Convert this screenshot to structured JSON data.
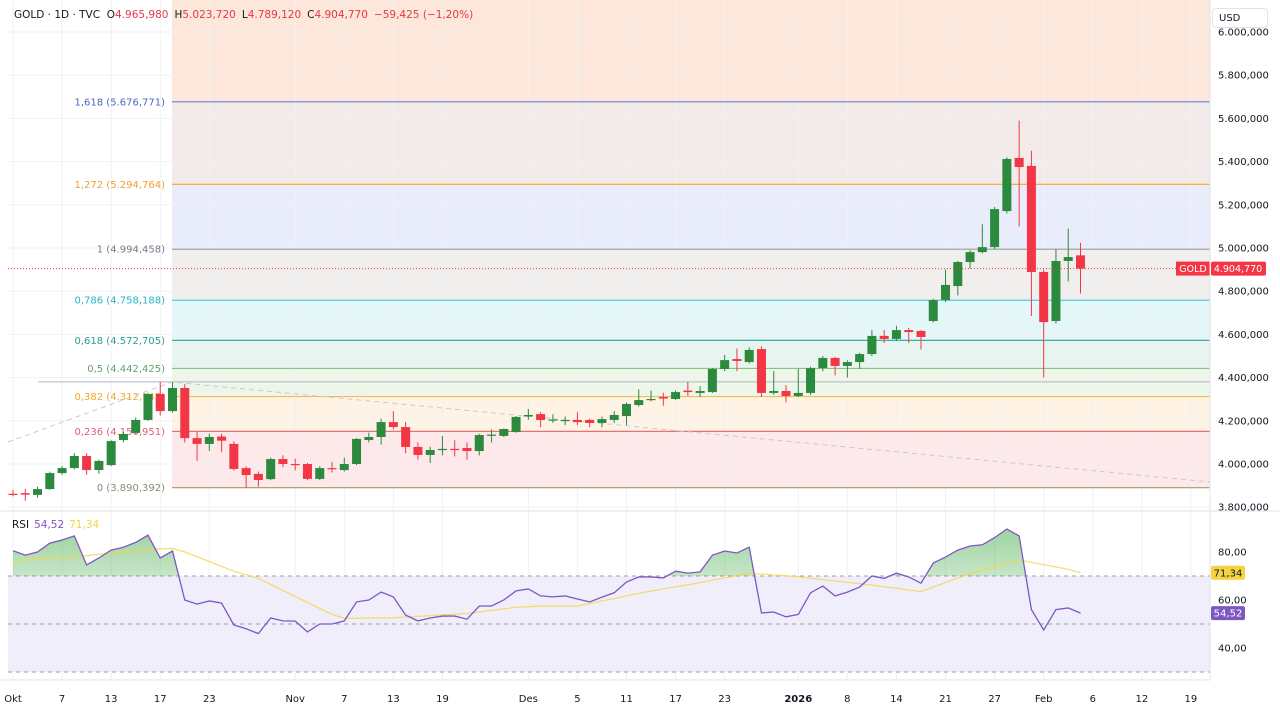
{
  "header": {
    "symbol": "GOLD · 1D · TVC",
    "ohlc": [
      {
        "key": "O",
        "value": "4.965,980"
      },
      {
        "key": "H",
        "value": "5.023,720"
      },
      {
        "key": "L",
        "value": "4.789,120"
      },
      {
        "key": "C",
        "value": "4.904,770"
      }
    ],
    "change": "−59,425 (−1,20%)"
  },
  "currency": "USD",
  "last_price": {
    "symbol": "GOLD",
    "label": "4.904,770",
    "value": 4904.77
  },
  "colors": {
    "up": "#2b8a3e",
    "down": "#f23645",
    "rsi": "#7e57c2",
    "rsi_ma": "#f5d442",
    "price_line": "#f23645"
  },
  "rsi_header": {
    "label": "RSI",
    "value": "54,52",
    "ma_value": "71,34"
  },
  "chart_data": [
    {
      "type": "candlestick",
      "interval": "1D",
      "ylim": [
        3800,
        6000
      ],
      "grid": true,
      "y_ticks": [
        {
          "value": 6000,
          "label": "6.000,000"
        },
        {
          "value": 5800,
          "label": "5.800,000"
        },
        {
          "value": 5600,
          "label": "5.600,000"
        },
        {
          "value": 5400,
          "label": "5.400,000"
        },
        {
          "value": 5200,
          "label": "5.200,000"
        },
        {
          "value": 5000,
          "label": "5.000,000"
        },
        {
          "value": 4800,
          "label": "4.800,000"
        },
        {
          "value": 4600,
          "label": "4.600,000"
        },
        {
          "value": 4400,
          "label": "4.400,000"
        },
        {
          "value": 4200,
          "label": "4.200,000"
        },
        {
          "value": 4000,
          "label": "4.000,000"
        },
        {
          "value": 3800,
          "label": "3.800,000"
        }
      ],
      "x_ticks": [
        {
          "bar": 0,
          "label": "Okt"
        },
        {
          "bar": 4,
          "label": "7"
        },
        {
          "bar": 8,
          "label": "13"
        },
        {
          "bar": 12,
          "label": "17"
        },
        {
          "bar": 16,
          "label": "23"
        },
        {
          "bar": 23,
          "label": "Nov"
        },
        {
          "bar": 27,
          "label": "7"
        },
        {
          "bar": 31,
          "label": "13"
        },
        {
          "bar": 35,
          "label": "19"
        },
        {
          "bar": 42,
          "label": "Des"
        },
        {
          "bar": 46,
          "label": "5"
        },
        {
          "bar": 50,
          "label": "11"
        },
        {
          "bar": 54,
          "label": "17"
        },
        {
          "bar": 58,
          "label": "23"
        },
        {
          "bar": 64,
          "label": "2026",
          "bold": true
        },
        {
          "bar": 68,
          "label": "8"
        },
        {
          "bar": 72,
          "label": "14"
        },
        {
          "bar": 76,
          "label": "21"
        },
        {
          "bar": 80,
          "label": "27"
        },
        {
          "bar": 84,
          "label": "Feb"
        },
        {
          "bar": 88,
          "label": "6"
        },
        {
          "bar": 92,
          "label": "12"
        },
        {
          "bar": 96,
          "label": "19"
        }
      ],
      "candles_ohlc": [
        [
          3862,
          3880,
          3850,
          3858
        ],
        [
          3865,
          3885,
          3830,
          3858
        ],
        [
          3857,
          3895,
          3845,
          3884
        ],
        [
          3884,
          3965,
          3880,
          3958
        ],
        [
          3958,
          3990,
          3950,
          3981
        ],
        [
          3981,
          4050,
          3975,
          4037
        ],
        [
          4037,
          4050,
          3950,
          3972
        ],
        [
          3972,
          4020,
          3955,
          4014
        ],
        [
          3995,
          4110,
          3990,
          4106
        ],
        [
          4111,
          4148,
          4100,
          4139
        ],
        [
          4144,
          4215,
          4140,
          4204
        ],
        [
          4204,
          4330,
          4200,
          4324
        ],
        [
          4324,
          4380,
          4225,
          4245
        ],
        [
          4245,
          4380,
          4238,
          4352
        ],
        [
          4352,
          4370,
          4100,
          4120
        ],
        [
          4120,
          4150,
          4015,
          4093
        ],
        [
          4093,
          4140,
          4060,
          4125
        ],
        [
          4127,
          4140,
          4055,
          4108
        ],
        [
          4093,
          4105,
          3970,
          3977
        ],
        [
          3981,
          3990,
          3890,
          3949
        ],
        [
          3954,
          3965,
          3895,
          3926
        ],
        [
          3930,
          4030,
          3925,
          4023
        ],
        [
          4023,
          4040,
          3985,
          4000
        ],
        [
          4000,
          4025,
          3970,
          3995
        ],
        [
          4000,
          4005,
          3925,
          3931
        ],
        [
          3931,
          3990,
          3925,
          3981
        ],
        [
          3981,
          4010,
          3960,
          3978
        ],
        [
          3972,
          4030,
          3965,
          4000
        ],
        [
          4000,
          4120,
          3995,
          4116
        ],
        [
          4111,
          4145,
          4100,
          4125
        ],
        [
          4125,
          4210,
          4090,
          4194
        ],
        [
          4194,
          4245,
          4160,
          4171
        ],
        [
          4171,
          4195,
          4050,
          4079
        ],
        [
          4079,
          4100,
          4020,
          4042
        ],
        [
          4042,
          4080,
          4005,
          4065
        ],
        [
          4065,
          4130,
          4040,
          4070
        ],
        [
          4070,
          4110,
          4035,
          4065
        ],
        [
          4074,
          4100,
          4020,
          4060
        ],
        [
          4060,
          4140,
          4040,
          4134
        ],
        [
          4134,
          4160,
          4100,
          4136
        ],
        [
          4130,
          4165,
          4125,
          4162
        ],
        [
          4148,
          4222,
          4145,
          4218
        ],
        [
          4220,
          4255,
          4205,
          4227
        ],
        [
          4231,
          4240,
          4170,
          4204
        ],
        [
          4204,
          4230,
          4190,
          4206
        ],
        [
          4200,
          4220,
          4180,
          4204
        ],
        [
          4204,
          4240,
          4180,
          4194
        ],
        [
          4204,
          4210,
          4170,
          4190
        ],
        [
          4190,
          4220,
          4170,
          4208
        ],
        [
          4204,
          4245,
          4190,
          4227
        ],
        [
          4222,
          4285,
          4180,
          4278
        ],
        [
          4273,
          4345,
          4266,
          4296
        ],
        [
          4296,
          4340,
          4290,
          4301
        ],
        [
          4310,
          4330,
          4270,
          4303
        ],
        [
          4301,
          4340,
          4296,
          4333
        ],
        [
          4340,
          4380,
          4315,
          4333
        ],
        [
          4329,
          4360,
          4310,
          4338
        ],
        [
          4333,
          4445,
          4329,
          4440
        ],
        [
          4440,
          4505,
          4430,
          4481
        ],
        [
          4486,
          4535,
          4430,
          4477
        ],
        [
          4472,
          4540,
          4465,
          4528
        ],
        [
          4532,
          4545,
          4310,
          4329
        ],
        [
          4329,
          4430,
          4320,
          4338
        ],
        [
          4338,
          4365,
          4285,
          4315
        ],
        [
          4315,
          4440,
          4310,
          4329
        ],
        [
          4329,
          4450,
          4320,
          4444
        ],
        [
          4444,
          4500,
          4430,
          4491
        ],
        [
          4491,
          4495,
          4410,
          4454
        ],
        [
          4454,
          4480,
          4400,
          4472
        ],
        [
          4472,
          4515,
          4440,
          4509
        ],
        [
          4509,
          4620,
          4500,
          4593
        ],
        [
          4593,
          4620,
          4560,
          4579
        ],
        [
          4579,
          4640,
          4570,
          4620
        ],
        [
          4620,
          4630,
          4560,
          4611
        ],
        [
          4616,
          4620,
          4530,
          4588
        ],
        [
          4662,
          4765,
          4655,
          4759
        ],
        [
          4759,
          4900,
          4750,
          4829
        ],
        [
          4824,
          4940,
          4780,
          4935
        ],
        [
          4935,
          4990,
          4905,
          4981
        ],
        [
          4981,
          5110,
          4975,
          5004
        ],
        [
          5004,
          5190,
          4995,
          5180
        ],
        [
          5171,
          5420,
          5160,
          5412
        ],
        [
          5417,
          5590,
          5100,
          5375
        ],
        [
          5380,
          5450,
          4685,
          4889
        ],
        [
          4889,
          4900,
          4400,
          4657
        ],
        [
          4662,
          4995,
          4650,
          4940
        ],
        [
          4940,
          5090,
          4845,
          4958
        ],
        [
          4965.98,
          5023.72,
          4789.12,
          4904.77
        ]
      ],
      "fibonacci": [
        {
          "ratio": "0",
          "price": 3890.392,
          "label": "0 (3.890,392)",
          "line": "#a59a6e",
          "text": "#8a8a7a",
          "fill": "#fde8ea"
        },
        {
          "ratio": "0.236",
          "price": 4150.951,
          "label": "0,236 (4.150,951)",
          "line": "#e57373",
          "text": "#e0607a",
          "fill": "#fff3e6"
        },
        {
          "ratio": "0.382",
          "price": 4312.145,
          "label": "0,382 (4.312,145)",
          "line": "#f7b955",
          "text": "#f5a623",
          "fill": "#eef6ea"
        },
        {
          "ratio": "0.5",
          "price": 4442.425,
          "label": "0,5 (4.442,425)",
          "line": "#81c784",
          "text": "#66a06a",
          "fill": "#e7f4ef"
        },
        {
          "ratio": "0.618",
          "price": 4572.705,
          "label": "0,618 (4.572,705)",
          "line": "#26a69a",
          "text": "#2a9d8f",
          "fill": "#e4f6f8"
        },
        {
          "ratio": "0.786",
          "price": 4758.188,
          "label": "0,786 (4.758,188)",
          "line": "#4dd0e1",
          "text": "#26b5c8",
          "fill": "#f1eeee"
        },
        {
          "ratio": "1",
          "price": 4994.458,
          "label": "1 (4.994,458)",
          "line": "#9598a1",
          "text": "#787b86",
          "fill": "#e9edfb"
        },
        {
          "ratio": "1.272",
          "price": 5294.764,
          "label": "1,272 (5.294,764)",
          "line": "#f5a623",
          "text": "#f0a030",
          "fill": "#f3ebea"
        },
        {
          "ratio": "1.618",
          "price": 5676.771,
          "label": "1,618 (5.676,771)",
          "line": "#6a7fd6",
          "text": "#4a66c8",
          "fill": "#fde6da"
        }
      ],
      "horizontal_line_price": 4380
    },
    {
      "type": "line",
      "title": "RSI",
      "ylim": [
        20,
        95
      ],
      "y_ticks": [
        {
          "value": 80,
          "label": "80,00"
        },
        {
          "value": 60,
          "label": "60,00"
        },
        {
          "value": 40,
          "label": "40,00"
        }
      ],
      "bands": {
        "upper": 70,
        "middle": 50,
        "lower": 30
      },
      "series": [
        {
          "key": "rsi",
          "last_label": "54,52",
          "values": [
            80.5,
            78.7,
            80,
            83.7,
            85,
            86.7,
            74.6,
            77.5,
            80.8,
            82,
            84,
            87,
            77.5,
            80.4,
            60,
            58.3,
            59.6,
            58.7,
            49.6,
            48,
            46,
            52.5,
            51.3,
            51.2,
            46.7,
            50,
            50,
            51.3,
            59.2,
            60,
            63.3,
            61.3,
            53.7,
            51.3,
            52.5,
            53.3,
            53.3,
            52,
            57.5,
            57.5,
            60,
            63.8,
            64.6,
            61.7,
            61.3,
            61.7,
            60.4,
            59.2,
            61.2,
            63,
            67.5,
            69.6,
            69.6,
            69.2,
            72,
            71.2,
            71.7,
            78.7,
            80.4,
            79.6,
            82,
            54.6,
            55,
            53,
            54,
            63,
            65.8,
            61.7,
            63.3,
            65.4,
            70,
            69,
            71.2,
            69.6,
            67,
            75.4,
            77.9,
            80.8,
            82.5,
            83,
            86,
            89.6,
            86.7,
            56,
            47.5,
            56,
            56.7,
            54.52
          ]
        },
        {
          "key": "rsi_ma",
          "last_label": "71,34",
          "values": [
            76.4,
            76.7,
            77,
            77.4,
            77.8,
            78.2,
            78.5,
            79,
            79.5,
            80,
            80.5,
            81,
            81.3,
            81.5,
            80,
            78,
            76,
            74,
            72,
            70.5,
            69,
            66.5,
            64,
            61.5,
            59,
            56.5,
            54,
            52.4,
            52.4,
            52.5,
            52.5,
            52.6,
            52.9,
            53.2,
            53.5,
            53.8,
            54.1,
            54.4,
            55,
            55.7,
            56.3,
            57,
            57.2,
            57.5,
            57.5,
            57.5,
            57.5,
            58.5,
            59.6,
            60.6,
            61.7,
            62.8,
            63.7,
            64.6,
            65.5,
            66.3,
            67.3,
            68.3,
            69.2,
            70.2,
            71.1,
            70.8,
            70.4,
            70.1,
            69.7,
            69.1,
            68.5,
            67.9,
            67.4,
            66.8,
            66.2,
            65.5,
            64.9,
            64.2,
            63.5,
            65.4,
            67.3,
            69.2,
            71.1,
            72.5,
            73.9,
            75.3,
            76.7,
            75.7,
            74.7,
            73.8,
            72.8,
            71.34
          ]
        }
      ]
    }
  ]
}
